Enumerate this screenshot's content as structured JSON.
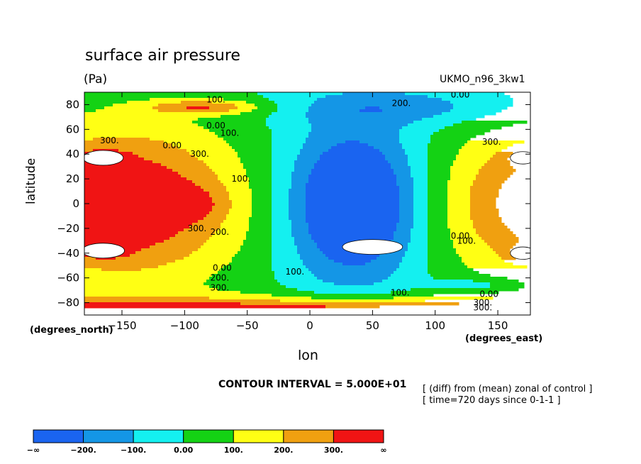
{
  "chart_data": {
    "type": "heatmap",
    "title": "surface air pressure",
    "units": "(Pa)",
    "model": "UKMO_n96_3kw1",
    "xlabel": "lon",
    "ylabel": "latitude",
    "x_units_label": "(degrees_east)",
    "y_units_label": "(degrees_north)",
    "xlim": [
      -180,
      176
    ],
    "ylim": [
      -90,
      90
    ],
    "x_ticks": [
      -150,
      -100,
      -50,
      0,
      50,
      100,
      150
    ],
    "y_ticks": [
      -80,
      -60,
      -40,
      -20,
      0,
      20,
      40,
      60,
      80
    ],
    "x_tick_labels": [
      "−150",
      "−100",
      "−50",
      "0",
      "50",
      "100",
      "150"
    ],
    "y_tick_labels": [
      "−80",
      "−60",
      "−40",
      "−20",
      "0",
      "20",
      "40",
      "60",
      "80"
    ],
    "contour_interval": "CONTOUR INTERVAL = 5.000E+01",
    "notes": [
      "[ (diff) from (mean) zonal of control ]",
      "[ time=720 days since 0-1-1 ]"
    ],
    "levels": [
      -200,
      -100,
      0,
      100,
      200,
      300
    ],
    "colorbar": {
      "labels": [
        "−∞",
        "−200.",
        "−100.",
        "0.00",
        "100.",
        "200.",
        "300.",
        "∞"
      ],
      "colors": [
        "#1a64f0",
        "#1496e6",
        "#14f0f0",
        "#14d214",
        "#ffff14",
        "#f0a010",
        "#f01414"
      ]
    },
    "contour_labels": [
      {
        "text": "100.",
        "lon": -75,
        "lat": 84
      },
      {
        "text": "200.",
        "lon": 73,
        "lat": 81
      },
      {
        "text": "0.00",
        "lon": 120,
        "lat": 88
      },
      {
        "text": "0.00",
        "lon": -75,
        "lat": 63
      },
      {
        "text": "100.",
        "lon": -64,
        "lat": 57
      },
      {
        "text": "300.",
        "lon": -160,
        "lat": 51
      },
      {
        "text": "0.00",
        "lon": -110,
        "lat": 47
      },
      {
        "text": "300.",
        "lon": -88,
        "lat": 40
      },
      {
        "text": "300.",
        "lon": 145,
        "lat": 50
      },
      {
        "text": "100.",
        "lon": -55,
        "lat": 20
      },
      {
        "text": "300.",
        "lon": -90,
        "lat": -20
      },
      {
        "text": "200.",
        "lon": -72,
        "lat": -23
      },
      {
        "text": "0.00",
        "lon": 120,
        "lat": -26
      },
      {
        "text": "100.",
        "lon": 125,
        "lat": -30
      },
      {
        "text": "0.00",
        "lon": -70,
        "lat": -52
      },
      {
        "text": "200.",
        "lon": -72,
        "lat": -60
      },
      {
        "text": "300.",
        "lon": -72,
        "lat": -68
      },
      {
        "text": "100.",
        "lon": -12,
        "lat": -55
      },
      {
        "text": "100.",
        "lon": 72,
        "lat": -72
      },
      {
        "text": "0.00",
        "lon": 143,
        "lat": -73
      },
      {
        "text": "300.",
        "lon": 138,
        "lat": -80
      },
      {
        "text": "300.",
        "lon": 138,
        "lat": -84
      }
    ],
    "highs": [
      {
        "lon": -165,
        "lat": 37,
        "rlon": 16,
        "rlat": 6
      },
      {
        "lon": -165,
        "lat": -38,
        "rlon": 17,
        "rlat": 6
      },
      {
        "lon": 170,
        "lat": 37,
        "rlon": 10,
        "rlat": 5
      },
      {
        "lon": 170,
        "lat": -40,
        "rlon": 10,
        "rlat": 5
      },
      {
        "lon": 50,
        "lat": -35,
        "rlon": 24,
        "rlat": 6
      }
    ]
  }
}
